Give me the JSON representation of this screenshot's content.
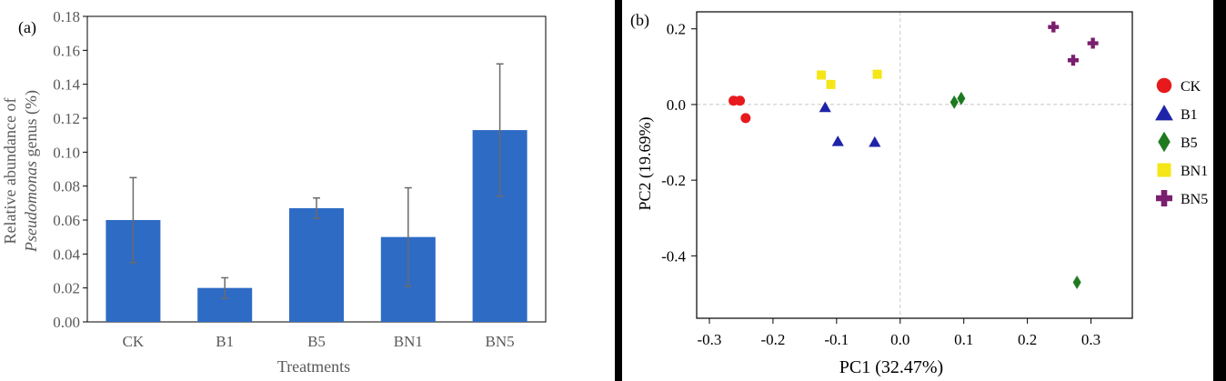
{
  "chart_data": [
    {
      "type": "bar",
      "panel_label": "(a)",
      "categories": [
        "CK",
        "B1",
        "B5",
        "BN1",
        "BN5"
      ],
      "values": [
        0.06,
        0.02,
        0.067,
        0.05,
        0.113
      ],
      "errors": [
        0.025,
        0.006,
        0.006,
        0.029,
        0.039
      ],
      "bar_color": "#2e6bc4",
      "error_color": "#6b6b6b",
      "xlabel": "Treatments",
      "ylabel_prefix": "Relative abundance of",
      "ylabel_italic": "Pseudomonas",
      "ylabel_suffix": " genus (%)",
      "ylim": [
        0,
        0.18
      ],
      "yticks": [
        "0.00",
        "0.02",
        "0.04",
        "0.06",
        "0.08",
        "0.10",
        "0.12",
        "0.14",
        "0.16",
        "0.18"
      ],
      "grid": false
    },
    {
      "type": "scatter",
      "panel_label": "(b)",
      "xlabel": "PC1 (32.47%)",
      "ylabel": "PC2 (19.69%)",
      "xlim": [
        -0.32,
        0.365
      ],
      "ylim": [
        -0.565,
        0.245
      ],
      "xticks": [
        {
          "value": -0.3,
          "label": "-0.3"
        },
        {
          "value": -0.2,
          "label": "-0.2"
        },
        {
          "value": -0.1,
          "label": "-0.1"
        },
        {
          "value": 0.0,
          "label": "0.0"
        },
        {
          "value": 0.1,
          "label": "0.1"
        },
        {
          "value": 0.2,
          "label": "0.2"
        },
        {
          "value": 0.3,
          "label": "0.3"
        }
      ],
      "yticks": [
        {
          "value": 0.2,
          "label": "0.2"
        },
        {
          "value": 0.0,
          "label": "0.0"
        },
        {
          "value": -0.2,
          "label": "-0.2"
        },
        {
          "value": -0.4,
          "label": "-0.4"
        }
      ],
      "reference_lines": {
        "x": 0.0,
        "y": 0.0,
        "style": "dashed"
      },
      "legend_position": "right",
      "series": [
        {
          "name": "CK",
          "marker": "circle",
          "color": "#e8191c",
          "points": [
            [
              -0.262,
              0.01
            ],
            [
              -0.252,
              0.01
            ],
            [
              -0.243,
              -0.036
            ]
          ]
        },
        {
          "name": "B1",
          "marker": "triangle",
          "color": "#1f23a8",
          "points": [
            [
              -0.118,
              -0.008
            ],
            [
              -0.098,
              -0.098
            ],
            [
              -0.04,
              -0.1
            ]
          ]
        },
        {
          "name": "B5",
          "marker": "diamond",
          "color": "#1f7a1f",
          "points": [
            [
              0.085,
              0.006
            ],
            [
              0.096,
              0.016
            ],
            [
              0.278,
              -0.47
            ]
          ]
        },
        {
          "name": "BN1",
          "marker": "square",
          "color": "#f5e617",
          "points": [
            [
              -0.124,
              0.078
            ],
            [
              -0.109,
              0.053
            ],
            [
              -0.036,
              0.08
            ]
          ]
        },
        {
          "name": "BN5",
          "marker": "cross",
          "color": "#7a1f6e",
          "points": [
            [
              0.241,
              0.205
            ],
            [
              0.272,
              0.117
            ],
            [
              0.303,
              0.162
            ]
          ]
        }
      ]
    }
  ]
}
